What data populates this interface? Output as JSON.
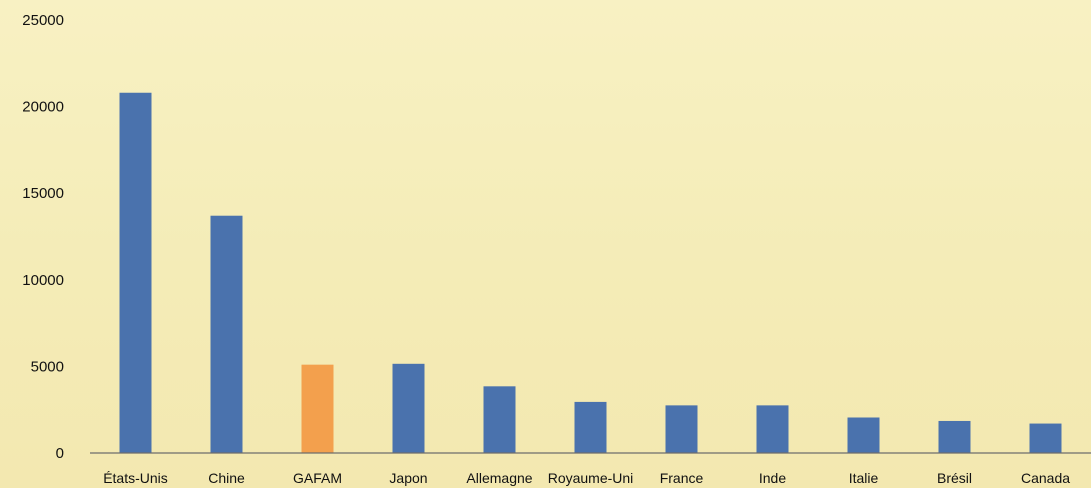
{
  "chart_data": {
    "type": "bar",
    "categories": [
      "États-Unis",
      "Chine",
      "GAFAM",
      "Japon",
      "Allemagne",
      "Royaume-Uni",
      "France",
      "Inde",
      "Italie",
      "Brésil",
      "Canada"
    ],
    "values": [
      20800,
      13700,
      5100,
      5150,
      3850,
      2950,
      2750,
      2750,
      2050,
      1850,
      1700
    ],
    "highlighted_category": "GAFAM",
    "y_ticks": [
      0,
      5000,
      10000,
      15000,
      20000,
      25000
    ],
    "ylim": [
      0,
      25000
    ],
    "grid": false,
    "legend": "none",
    "colors": {
      "primary_bar": "#4a72ad",
      "highlight_bar": "#f3a04d",
      "axis_line": "#6d6d6d",
      "text": "#111111"
    }
  }
}
